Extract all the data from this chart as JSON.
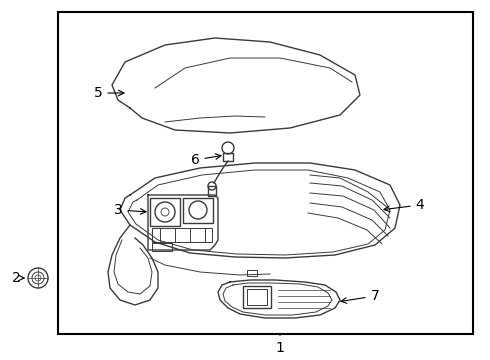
{
  "background_color": "#ffffff",
  "border_color": "#000000",
  "line_color": "#3a3a3a",
  "label_color": "#000000",
  "figsize": [
    4.9,
    3.6
  ],
  "dpi": 100,
  "border": [
    0.18,
    0.08,
    0.78,
    0.88
  ],
  "label_fontsize": 10
}
